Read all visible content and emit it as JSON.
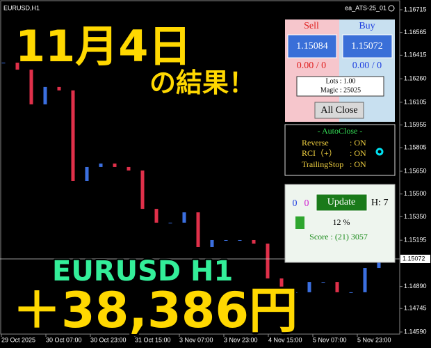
{
  "window": {
    "symbol": "EURUSD,H1",
    "ea_name": "ea_ATS-25_01"
  },
  "price_axis": {
    "ylim": [
      1.1459,
      1.16715
    ],
    "yticks": [
      1.16715,
      1.16565,
      1.16415,
      {
        "value": 1.1626,
        "label": "1.16260"
      },
      1.16105,
      1.15955,
      1.15805,
      {
        "value": 1.1565,
        "label": "1.15650"
      },
      {
        "value": 1.155,
        "label": "1.15500"
      },
      {
        "value": 1.1535,
        "label": "1.15350"
      },
      1.15195,
      {
        "value": 1.1489,
        "label": "1.14890"
      },
      1.14745,
      {
        "value": 1.1459,
        "label": "1.14590"
      }
    ],
    "current_price": 1.15072
  },
  "time_labels": [
    "29 Oct 2025",
    "30 Oct 07:00",
    "30 Oct 23:00",
    "31 Oct 15:00",
    "3 Nov 07:00",
    "3 Nov 23:00",
    "4 Nov 15:00",
    "5 Nov 07:00",
    "5 Nov 23:00"
  ],
  "closes": [
    1.16366,
    1.1632,
    1.16091,
    1.16206,
    1.16183,
    1.15586,
    1.15678,
    1.15701,
    1.15678,
    1.15655,
    1.15402,
    1.15311,
    1.15311,
    1.15379,
    1.1515,
    1.15196,
    1.15196,
    1.15196,
    1.15173,
    1.14943,
    1.14852,
    1.14852,
    1.1492,
    1.1492,
    1.14852,
    1.14852,
    1.15012,
    1.15058
  ],
  "overlay": {
    "date": "11月4日",
    "result": "の結果！",
    "pair": "EURUSD H1",
    "profit": "＋38,386円"
  },
  "trade_panel": {
    "sell_label": "Sell",
    "buy_label": "Buy",
    "sell_price": "1.15084",
    "buy_price": "1.15072",
    "sell_pl": "0.00 / 0",
    "buy_pl": "0.00 / 0",
    "lots": "Lots : 1.00",
    "magic": "Magic : 25025",
    "close_button": "All Close"
  },
  "autoclose": {
    "title": "- AutoClose -",
    "rows": [
      [
        "Reverse",
        ": ON"
      ],
      [
        "RCI（+）",
        ": ON"
      ],
      [
        "TrailingStop",
        ": ON"
      ]
    ]
  },
  "status": {
    "count_a": "0",
    "count_b": "0",
    "update_button": "Update",
    "hours": "H: 7",
    "percent": "12 %",
    "score": "Score : (21) 3057"
  }
}
